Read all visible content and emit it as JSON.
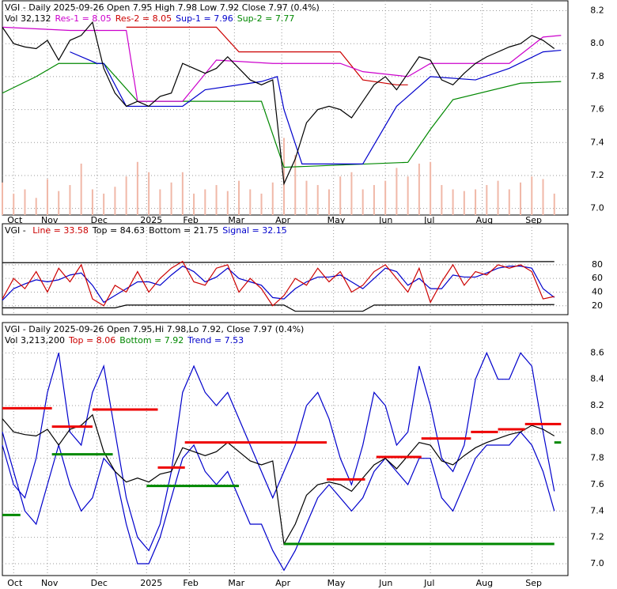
{
  "chart_data": [
    {
      "type": "line",
      "header": [
        [
          {
            "text": "VGI - Daily 2025-09-26 Open 7.95  High 7.98  Low 7.92  Close 7.97 (0.4%)",
            "color": "#000000"
          }
        ],
        [
          {
            "text": "Vol 32,132",
            "color": "#000000"
          },
          {
            "text": "Res-1 = 8.05",
            "color": "#cc00cc"
          },
          {
            "text": "Res-2 = 8.05",
            "color": "#cc0000"
          },
          {
            "text": "Sup-1 = 7.96",
            "color": "#0000cc"
          },
          {
            "text": "Sup-2 = 7.77",
            "color": "#008800"
          }
        ]
      ],
      "xlim": [
        0,
        250
      ],
      "xticks": [
        {
          "value": 5,
          "label": "Oct"
        },
        {
          "value": 20,
          "label": "Nov"
        },
        {
          "value": 42,
          "label": "Dec"
        },
        {
          "value": 64,
          "label": "2025"
        },
        {
          "value": 83,
          "label": "Feb"
        },
        {
          "value": 103,
          "label": "Mar"
        },
        {
          "value": 124,
          "label": "Apr"
        },
        {
          "value": 147,
          "label": "May"
        },
        {
          "value": 170,
          "label": "Jun"
        },
        {
          "value": 190,
          "label": "Jul"
        },
        {
          "value": 213,
          "label": "Aug"
        },
        {
          "value": 235,
          "label": "Sep"
        }
      ],
      "ylim": [
        6.96,
        8.26
      ],
      "yticks": [
        {
          "value": 7,
          "label": "7.0"
        },
        7.2,
        7.4,
        7.6,
        7.8,
        {
          "value": 8,
          "label": "8.0"
        },
        8.2
      ],
      "y2lim": [
        0,
        2500000
      ],
      "grid": true,
      "x": [
        0,
        5,
        10,
        15,
        20,
        25,
        30,
        35,
        40,
        45,
        50,
        55,
        60,
        65,
        70,
        75,
        80,
        85,
        90,
        95,
        100,
        105,
        110,
        115,
        120,
        125,
        130,
        135,
        140,
        145,
        150,
        155,
        160,
        165,
        170,
        175,
        180,
        185,
        190,
        195,
        200,
        205,
        210,
        215,
        220,
        225,
        230,
        235,
        240,
        245
      ],
      "series": [
        {
          "name": "Vol",
          "kind": "bar",
          "axis": "y2",
          "color": "#f0b8a8",
          "values": [
            380000,
            250000,
            300000,
            200000,
            420000,
            280000,
            350000,
            600000,
            300000,
            250000,
            330000,
            450000,
            620000,
            500000,
            300000,
            380000,
            500000,
            250000,
            300000,
            350000,
            280000,
            400000,
            300000,
            250000,
            380000,
            900000,
            700000,
            400000,
            350000,
            300000,
            450000,
            500000,
            300000,
            350000,
            400000,
            550000,
            450000,
            600000,
            620000,
            350000,
            300000,
            280000,
            300000,
            350000,
            400000,
            300000,
            380000,
            450000,
            420000,
            250000
          ]
        },
        {
          "name": "Sup-2",
          "color": "#008800",
          "x": [
            0,
            15,
            25,
            45,
            60,
            115,
            125,
            180,
            190,
            200,
            230,
            248
          ],
          "values": [
            7.7,
            7.8,
            7.88,
            7.88,
            7.65,
            7.65,
            7.25,
            7.28,
            7.48,
            7.66,
            7.76,
            7.77
          ]
        },
        {
          "name": "Sup-1",
          "color": "#0000cc",
          "x": [
            30,
            42,
            45,
            55,
            80,
            90,
            115,
            122,
            125,
            133,
            160,
            175,
            190,
            210,
            225,
            240,
            248
          ],
          "values": [
            7.95,
            7.88,
            7.88,
            7.62,
            7.62,
            7.72,
            7.77,
            7.8,
            7.6,
            7.27,
            7.27,
            7.62,
            7.8,
            7.78,
            7.85,
            7.95,
            7.96
          ]
        },
        {
          "name": "Res-2",
          "color": "#cc0000",
          "x": [
            55,
            95,
            105,
            150,
            160,
            175,
            180
          ],
          "values": [
            8.1,
            8.1,
            7.95,
            7.95,
            7.78,
            7.75,
            7.75
          ]
        },
        {
          "name": "Res-1",
          "color": "#cc00cc",
          "x": [
            0,
            30,
            55,
            60,
            80,
            95,
            120,
            150,
            160,
            180,
            190,
            225,
            240,
            248
          ],
          "values": [
            8.1,
            8.08,
            8.08,
            7.65,
            7.65,
            7.9,
            7.88,
            7.88,
            7.83,
            7.8,
            7.88,
            7.88,
            8.04,
            8.05
          ]
        },
        {
          "name": "Close",
          "color": "#000000",
          "values": [
            8.1,
            8.0,
            7.98,
            7.97,
            8.02,
            7.9,
            8.02,
            8.05,
            8.13,
            7.85,
            7.7,
            7.62,
            7.65,
            7.62,
            7.68,
            7.7,
            7.88,
            7.85,
            7.82,
            7.85,
            7.92,
            7.85,
            7.78,
            7.75,
            7.78,
            7.15,
            7.3,
            7.52,
            7.6,
            7.62,
            7.6,
            7.55,
            7.65,
            7.75,
            7.8,
            7.72,
            7.82,
            7.92,
            7.9,
            7.78,
            7.75,
            7.82,
            7.88,
            7.92,
            7.95,
            7.98,
            8.0,
            8.05,
            8.02,
            7.97
          ]
        }
      ]
    },
    {
      "type": "line",
      "header": [
        [
          {
            "text": "VGI - ",
            "color": "#000000"
          },
          {
            "text": "Line = 33.58",
            "color": "#cc0000"
          },
          {
            "text": "Top = 84.63",
            "color": "#000000"
          },
          {
            "text": "Bottom = 21.75",
            "color": "#000000"
          },
          {
            "text": "Signal = 32.15",
            "color": "#0000cc"
          }
        ]
      ],
      "xlim": [
        0,
        250
      ],
      "xticks": [
        5,
        20,
        42,
        64,
        83,
        103,
        124,
        147,
        170,
        190,
        213,
        235
      ],
      "ylim": [
        7,
        140
      ],
      "yticks": [
        20,
        40,
        60,
        80
      ],
      "grid": true,
      "x": [
        0,
        5,
        10,
        15,
        20,
        25,
        30,
        35,
        40,
        45,
        50,
        55,
        60,
        65,
        70,
        75,
        80,
        85,
        90,
        95,
        100,
        105,
        110,
        115,
        120,
        125,
        130,
        135,
        140,
        145,
        150,
        155,
        160,
        165,
        170,
        175,
        180,
        185,
        190,
        195,
        200,
        205,
        210,
        215,
        220,
        225,
        230,
        235,
        240,
        245
      ],
      "series": [
        {
          "name": "Top",
          "color": "#000000",
          "x": [
            0,
            60,
            125,
            245
          ],
          "values": [
            83,
            83,
            84,
            84.63
          ]
        },
        {
          "name": "Bottom",
          "color": "#000000",
          "x": [
            0,
            50,
            55,
            125,
            130,
            160,
            165,
            245
          ],
          "values": [
            17,
            17,
            21,
            21,
            12,
            12,
            21,
            21.75
          ]
        },
        {
          "name": "Signal",
          "color": "#0000cc",
          "values": [
            28,
            45,
            52,
            58,
            55,
            58,
            65,
            68,
            50,
            25,
            35,
            45,
            55,
            55,
            50,
            65,
            78,
            70,
            55,
            62,
            75,
            60,
            55,
            50,
            32,
            30,
            45,
            55,
            62,
            62,
            65,
            55,
            45,
            60,
            75,
            70,
            50,
            60,
            45,
            45,
            65,
            62,
            62,
            68,
            75,
            78,
            78,
            75,
            45,
            32.15
          ]
        },
        {
          "name": "Line",
          "color": "#cc0000",
          "values": [
            30,
            60,
            45,
            70,
            40,
            75,
            55,
            80,
            30,
            20,
            50,
            40,
            70,
            40,
            60,
            75,
            85,
            55,
            50,
            75,
            80,
            40,
            60,
            45,
            20,
            35,
            60,
            50,
            75,
            55,
            70,
            40,
            50,
            70,
            80,
            60,
            40,
            75,
            25,
            55,
            80,
            50,
            70,
            65,
            80,
            75,
            80,
            70,
            30,
            33.58
          ]
        }
      ]
    },
    {
      "type": "line",
      "header": [
        [
          {
            "text": "VGI - Daily 2025-09-26 Open 7.95,Hi 7.98,Lo 7.92, Close 7.97 (0.4%)",
            "color": "#000000"
          }
        ],
        [
          {
            "text": "Vol 3,213,200",
            "color": "#000000"
          },
          {
            "text": "Top = 8.06",
            "color": "#cc0000"
          },
          {
            "text": "Bottom = 7.92",
            "color": "#008800"
          },
          {
            "text": "Trend = 7.53",
            "color": "#0000cc"
          }
        ]
      ],
      "xlim": [
        0,
        250
      ],
      "xticks": [
        {
          "value": 5,
          "label": "Oct"
        },
        {
          "value": 20,
          "label": "Nov"
        },
        {
          "value": 42,
          "label": "Dec"
        },
        {
          "value": 64,
          "label": "2025"
        },
        {
          "value": 83,
          "label": "Feb"
        },
        {
          "value": 103,
          "label": "Mar"
        },
        {
          "value": 124,
          "label": "Apr"
        },
        {
          "value": 147,
          "label": "May"
        },
        {
          "value": 170,
          "label": "Jun"
        },
        {
          "value": 190,
          "label": "Jul"
        },
        {
          "value": 213,
          "label": "Aug"
        },
        {
          "value": 235,
          "label": "Sep"
        }
      ],
      "ylim": [
        6.91,
        8.83
      ],
      "yticks": [
        {
          "value": 7,
          "label": "7.0"
        },
        7.2,
        7.4,
        7.6,
        7.8,
        {
          "value": 8,
          "label": "8.0"
        },
        8.2,
        8.4,
        8.6
      ],
      "grid": true,
      "x": [
        0,
        5,
        10,
        15,
        20,
        25,
        30,
        35,
        40,
        45,
        50,
        55,
        60,
        65,
        70,
        75,
        80,
        85,
        90,
        95,
        100,
        105,
        110,
        115,
        120,
        125,
        130,
        135,
        140,
        145,
        150,
        155,
        160,
        165,
        170,
        175,
        180,
        185,
        190,
        195,
        200,
        205,
        210,
        215,
        220,
        225,
        230,
        235,
        240,
        245
      ],
      "segments": [
        {
          "color": "#ee0000",
          "x": [
            0,
            22
          ],
          "values": [
            8.18,
            8.18
          ]
        },
        {
          "color": "#ee0000",
          "x": [
            22,
            40
          ],
          "values": [
            8.04,
            8.04
          ]
        },
        {
          "color": "#ee0000",
          "x": [
            40,
            69
          ],
          "values": [
            8.17,
            8.17
          ]
        },
        {
          "color": "#ee0000",
          "x": [
            69,
            81
          ],
          "values": [
            7.73,
            7.73
          ]
        },
        {
          "color": "#ee0000",
          "x": [
            81,
            144
          ],
          "values": [
            7.92,
            7.92
          ]
        },
        {
          "color": "#ee0000",
          "x": [
            144,
            161
          ],
          "values": [
            7.64,
            7.64
          ]
        },
        {
          "color": "#ee0000",
          "x": [
            166,
            186
          ],
          "values": [
            7.81,
            7.81
          ]
        },
        {
          "color": "#ee0000",
          "x": [
            186,
            208
          ],
          "values": [
            7.95,
            7.95
          ]
        },
        {
          "color": "#ee0000",
          "x": [
            208,
            220
          ],
          "values": [
            8.0,
            8.0
          ]
        },
        {
          "color": "#ee0000",
          "x": [
            220,
            232
          ],
          "values": [
            8.02,
            8.02
          ]
        },
        {
          "color": "#ee0000",
          "x": [
            232,
            248
          ],
          "values": [
            8.06,
            8.06
          ]
        },
        {
          "color": "#008800",
          "x": [
            0,
            8
          ],
          "values": [
            7.37,
            7.37
          ]
        },
        {
          "color": "#008800",
          "x": [
            22,
            49
          ],
          "values": [
            7.83,
            7.83
          ]
        },
        {
          "color": "#008800",
          "x": [
            64,
            105
          ],
          "values": [
            7.59,
            7.59
          ]
        },
        {
          "color": "#008800",
          "x": [
            125,
            245
          ],
          "values": [
            7.15,
            7.15
          ]
        },
        {
          "color": "#008800",
          "x": [
            245,
            248
          ],
          "values": [
            7.92,
            7.92
          ]
        }
      ],
      "series": [
        {
          "name": "Upper band",
          "color": "#0000cc",
          "values": [
            7.9,
            7.6,
            7.5,
            7.8,
            8.3,
            8.6,
            8.0,
            7.9,
            8.3,
            8.5,
            8.0,
            7.5,
            7.2,
            7.1,
            7.3,
            7.7,
            8.3,
            8.5,
            8.3,
            8.2,
            8.3,
            8.1,
            7.9,
            7.7,
            7.5,
            7.7,
            7.9,
            8.2,
            8.3,
            8.1,
            7.8,
            7.6,
            7.9,
            8.3,
            8.2,
            7.9,
            8.0,
            8.5,
            8.2,
            7.8,
            7.7,
            7.9,
            8.4,
            8.6,
            8.4,
            8.4,
            8.6,
            8.5,
            8.0,
            7.55
          ]
        },
        {
          "name": "Lower band",
          "color": "#0000cc",
          "values": [
            8.0,
            7.7,
            7.4,
            7.3,
            7.6,
            7.9,
            7.6,
            7.4,
            7.5,
            7.8,
            7.7,
            7.3,
            7.0,
            7.0,
            7.2,
            7.5,
            7.8,
            7.9,
            7.7,
            7.6,
            7.7,
            7.5,
            7.3,
            7.3,
            7.1,
            6.95,
            7.1,
            7.3,
            7.5,
            7.6,
            7.5,
            7.4,
            7.5,
            7.7,
            7.8,
            7.7,
            7.6,
            7.8,
            7.8,
            7.5,
            7.4,
            7.6,
            7.8,
            7.9,
            7.9,
            7.9,
            8.0,
            7.9,
            7.7,
            7.4
          ]
        },
        {
          "name": "Close",
          "color": "#000000",
          "values": [
            8.1,
            8.0,
            7.98,
            7.97,
            8.02,
            7.9,
            8.02,
            8.05,
            8.13,
            7.85,
            7.7,
            7.62,
            7.65,
            7.62,
            7.68,
            7.7,
            7.88,
            7.85,
            7.82,
            7.85,
            7.92,
            7.85,
            7.78,
            7.75,
            7.78,
            7.15,
            7.3,
            7.52,
            7.6,
            7.62,
            7.6,
            7.55,
            7.65,
            7.75,
            7.8,
            7.72,
            7.82,
            7.92,
            7.9,
            7.78,
            7.75,
            7.82,
            7.88,
            7.92,
            7.95,
            7.98,
            8.0,
            8.05,
            8.02,
            7.97
          ]
        }
      ]
    }
  ]
}
